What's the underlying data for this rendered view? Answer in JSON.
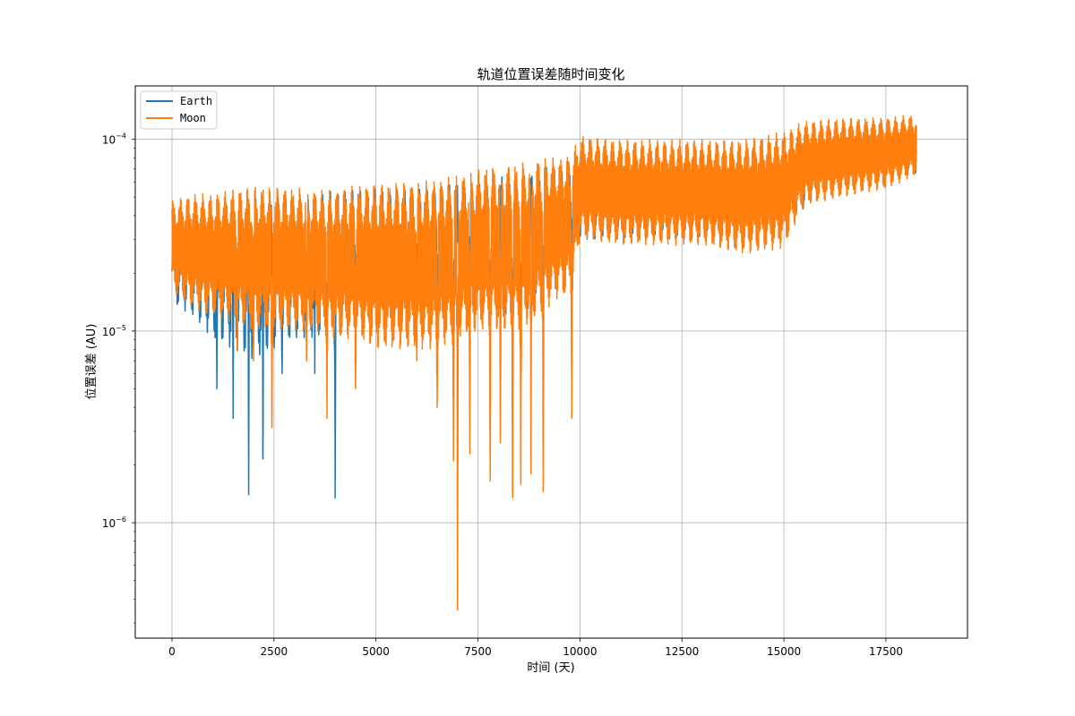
{
  "chart_data": {
    "type": "line",
    "title": "轨道位置误差随时间变化",
    "xlabel": "时间 (天)",
    "ylabel": "位置误差 (AU)",
    "xlim": [
      -900,
      19500
    ],
    "ylim": [
      2.5e-07,
      0.00019
    ],
    "yscale": "log",
    "grid": true,
    "legend_position": "top-left",
    "x_ticks": [
      0,
      2500,
      5000,
      7500,
      10000,
      12500,
      15000,
      17500
    ],
    "x_tick_labels": [
      "0",
      "2500",
      "5000",
      "7500",
      "10000",
      "12500",
      "15000",
      "17500"
    ],
    "y_ticks": [
      1e-06,
      1e-05,
      0.0001
    ],
    "y_tick_labels": [
      {
        "base": "10",
        "exp": "−6"
      },
      {
        "base": "10",
        "exp": "−5"
      },
      {
        "base": "10",
        "exp": "−4"
      }
    ],
    "series": [
      {
        "name": "Earth",
        "color": "#1f77b4",
        "x_max": 18250,
        "envelope": [
          [
            0,
            1.4e-05,
            3e-05
          ],
          [
            500,
            1.2e-05,
            4e-05
          ],
          [
            1000,
            9e-06,
            4.5e-05
          ],
          [
            1500,
            8e-06,
            5e-05
          ],
          [
            2000,
            7e-06,
            5e-05
          ],
          [
            2500,
            8e-06,
            5e-05
          ],
          [
            3000,
            9e-06,
            5e-05
          ],
          [
            3500,
            9e-06,
            5e-05
          ],
          [
            4000,
            1e-05,
            5.5e-05
          ],
          [
            4500,
            1.2e-05,
            5.5e-05
          ],
          [
            5000,
            1.3e-05,
            5.5e-05
          ],
          [
            5500,
            1.4e-05,
            5.5e-05
          ],
          [
            6000,
            1.4e-05,
            5.5e-05
          ],
          [
            6500,
            1.3e-05,
            5.5e-05
          ],
          [
            7000,
            1.2e-05,
            6e-05
          ],
          [
            7500,
            1.2e-05,
            6e-05
          ],
          [
            8000,
            1.2e-05,
            6.5e-05
          ],
          [
            8500,
            1.1e-05,
            6.5e-05
          ],
          [
            9000,
            1.5e-05,
            7e-05
          ],
          [
            9500,
            2e-05,
            7.5e-05
          ],
          [
            10000,
            3e-05,
            8e-05
          ],
          [
            11000,
            3e-05,
            8e-05
          ],
          [
            12000,
            3e-05,
            8e-05
          ],
          [
            13000,
            3e-05,
            8e-05
          ],
          [
            14000,
            3.5e-05,
            8.5e-05
          ],
          [
            15000,
            3.5e-05,
            9e-05
          ],
          [
            16000,
            5.5e-05,
            0.00011
          ],
          [
            17000,
            6e-05,
            0.00012
          ],
          [
            18250,
            6.5e-05,
            0.00012
          ]
        ],
        "dips": [
          [
            1100,
            5e-06
          ],
          [
            1500,
            3.5e-06
          ],
          [
            1880,
            1.4e-06
          ],
          [
            2230,
            1.45e-06
          ],
          [
            2700,
            6e-06
          ],
          [
            3300,
            7e-06
          ],
          [
            3500,
            6e-06
          ],
          [
            4000,
            1.35e-06
          ]
        ]
      },
      {
        "name": "Moon",
        "color": "#ff7f0e",
        "x_max": 18250,
        "envelope": [
          [
            0,
            1.6e-05,
            4.8e-05
          ],
          [
            500,
            1.3e-05,
            5.2e-05
          ],
          [
            1000,
            1.2e-05,
            5.2e-05
          ],
          [
            1500,
            1.1e-05,
            5.5e-05
          ],
          [
            2000,
            1e-05,
            5.7e-05
          ],
          [
            2500,
            1e-05,
            5.7e-05
          ],
          [
            3000,
            1e-05,
            5.6e-05
          ],
          [
            3500,
            1e-05,
            5.5e-05
          ],
          [
            4000,
            9e-06,
            5.4e-05
          ],
          [
            4500,
            9e-06,
            5.8e-05
          ],
          [
            5000,
            8e-06,
            5.9e-05
          ],
          [
            5500,
            8e-06,
            6e-05
          ],
          [
            6000,
            8e-06,
            6e-05
          ],
          [
            6500,
            8e-06,
            6.2e-05
          ],
          [
            7000,
            9e-06,
            6.5e-05
          ],
          [
            7500,
            1e-05,
            7e-05
          ],
          [
            8000,
            1e-05,
            7.5e-05
          ],
          [
            8500,
            1e-05,
            7.5e-05
          ],
          [
            9000,
            1.2e-05,
            8e-05
          ],
          [
            9500,
            1.5e-05,
            8e-05
          ],
          [
            9800,
            1.5e-05,
            8.5e-05
          ],
          [
            10000,
            3e-05,
            0.000105
          ],
          [
            11000,
            2.8e-05,
            0.0001
          ],
          [
            12000,
            2.8e-05,
            0.0001
          ],
          [
            13000,
            2.8e-05,
            0.0001
          ],
          [
            14000,
            2.5e-05,
            0.0001
          ],
          [
            15000,
            2.7e-05,
            0.00011
          ],
          [
            15500,
            4.5e-05,
            0.000125
          ],
          [
            16500,
            5e-05,
            0.00013
          ],
          [
            17500,
            5.5e-05,
            0.00013
          ],
          [
            18250,
            6.5e-05,
            0.000135
          ]
        ],
        "dips": [
          [
            1600,
            8e-06
          ],
          [
            2000,
            7e-06
          ],
          [
            2450,
            2.5e-06
          ],
          [
            3300,
            7e-06
          ],
          [
            3800,
            3.5e-06
          ],
          [
            4500,
            5e-06
          ],
          [
            6000,
            7e-06
          ],
          [
            6500,
            4e-06
          ],
          [
            6900,
            2.1e-06
          ],
          [
            7000,
            3.5e-07
          ],
          [
            7300,
            2.3e-06
          ],
          [
            7800,
            1.65e-06
          ],
          [
            8050,
            1.8e-06
          ],
          [
            8350,
            8.5e-07
          ],
          [
            8550,
            1.15e-06
          ],
          [
            8800,
            1.8e-06
          ],
          [
            9100,
            1.45e-06
          ],
          [
            9800,
            3.5e-06
          ]
        ]
      }
    ]
  }
}
